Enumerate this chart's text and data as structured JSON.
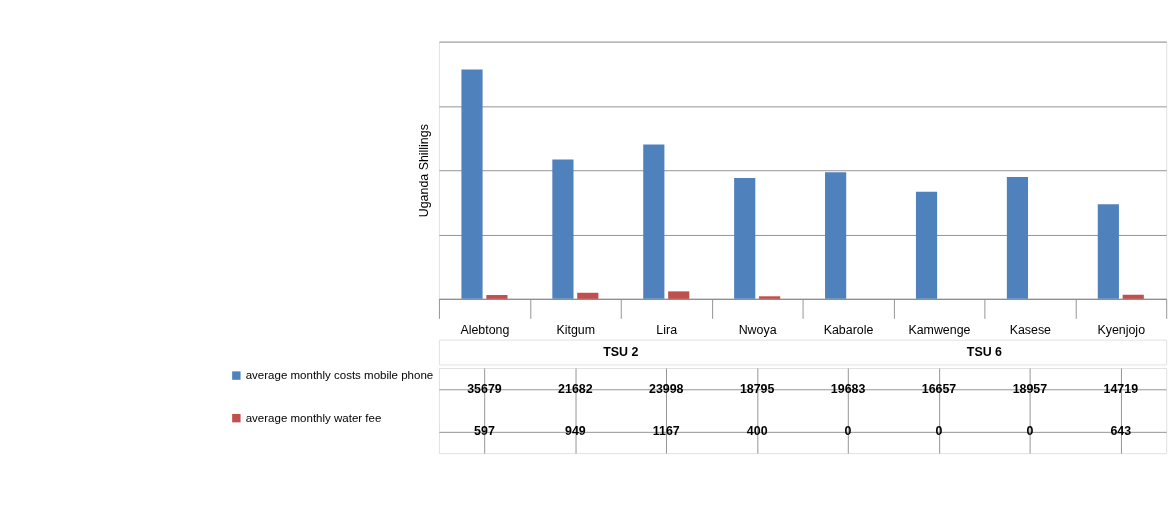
{
  "chart_data": {
    "type": "bar",
    "ylabel": "Uganda Shillings",
    "categories": [
      "Alebtong",
      "Kitgum",
      "Lira",
      "Nwoya",
      "Kabarole",
      "Kamwenge",
      "Kasese",
      "Kyenjojo"
    ],
    "series": [
      {
        "name": "average monthly costs mobile phone",
        "color": "#4f81bd",
        "values": [
          35679,
          21682,
          23998,
          18795,
          19683,
          16657,
          18957,
          14719
        ]
      },
      {
        "name": "average monthly water fee",
        "color": "#c0504d",
        "values": [
          597,
          949,
          1167,
          400,
          0,
          0,
          0,
          643
        ]
      }
    ],
    "annotations": [
      "TSU 2",
      "TSU 6"
    ],
    "ylim": [
      0,
      40000
    ],
    "yticks": [
      {
        "value": 0,
        "label": null
      },
      {
        "value": 10000,
        "label": null
      },
      {
        "value": 20000,
        "label": null
      },
      {
        "value": 30000,
        "label": null
      },
      {
        "value": 40000,
        "label": null
      }
    ],
    "tick_labels": "x",
    "grid": "y",
    "legend": "bottom left",
    "data_labels": true
  }
}
